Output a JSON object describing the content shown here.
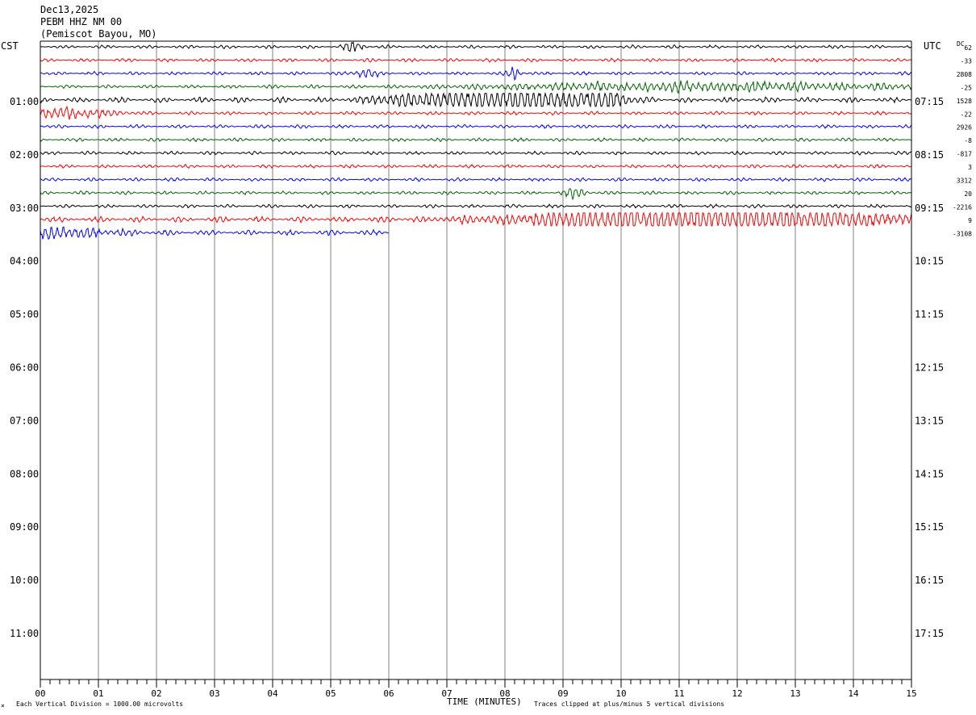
{
  "header": {
    "date": "Dec13,2025",
    "station": "PEBM HHZ NM 00",
    "location": "(Pemiscot Bayou, MO)"
  },
  "left_tz": "CST",
  "right_tz": "UTC",
  "dc_label": "DC",
  "footer": {
    "left_note": "Each Vertical Division = 1000.00 microvolts",
    "corner_mark": "×",
    "axis_title": "TIME (MINUTES)",
    "right_note": "Traces clipped at plus/minus 5 vertical divisions"
  },
  "chart_data": {
    "type": "line",
    "x_unit": "minutes",
    "xlim": [
      0,
      15
    ],
    "x_ticks": [
      "00",
      "01",
      "02",
      "03",
      "04",
      "05",
      "06",
      "07",
      "08",
      "09",
      "10",
      "11",
      "12",
      "13",
      "14",
      "15"
    ],
    "left_hour_labels": [
      "01:00",
      "02:00",
      "03:00",
      "04:00",
      "05:00",
      "06:00",
      "07:00",
      "08:00",
      "09:00",
      "10:00",
      "11:00"
    ],
    "right_hour_labels": [
      "07:15",
      "08:15",
      "09:15",
      "10:15",
      "11:15",
      "12:15",
      "13:15",
      "14:15",
      "15:15",
      "16:15",
      "17:15"
    ],
    "row_minutes": 15,
    "color_cycle": [
      "#000000",
      "#ff0000",
      "#0000ff",
      "#006400"
    ],
    "traces": [
      {
        "row": 0,
        "dc": "62",
        "end_minute": 15,
        "amp": 1.0,
        "bursts": [
          [
            5.4,
            0.15,
            2.0
          ]
        ]
      },
      {
        "row": 1,
        "dc": "-33",
        "end_minute": 15,
        "amp": 1.0,
        "bursts": []
      },
      {
        "row": 2,
        "dc": "2808",
        "end_minute": 15,
        "amp": 1.0,
        "bursts": [
          [
            5.6,
            0.2,
            1.5
          ],
          [
            8.15,
            0.1,
            2.5
          ]
        ]
      },
      {
        "row": 3,
        "dc": "-25",
        "end_minute": 15,
        "amp": 1.0,
        "bursts": [
          [
            11.5,
            3.5,
            1.5
          ]
        ]
      },
      {
        "row": 4,
        "dc": "1528",
        "end_minute": 15,
        "amp": 1.6,
        "bursts": [
          [
            8.2,
            1.0,
            5.0
          ],
          [
            9.7,
            0.4,
            3.0
          ],
          [
            6.5,
            0.8,
            2.0
          ]
        ]
      },
      {
        "row": 5,
        "dc": "-22",
        "end_minute": 15,
        "amp": 1.0,
        "bursts": [
          [
            0.5,
            0.8,
            1.5
          ]
        ]
      },
      {
        "row": 6,
        "dc": "2926",
        "end_minute": 15,
        "amp": 1.0,
        "bursts": []
      },
      {
        "row": 7,
        "dc": "-8",
        "end_minute": 15,
        "amp": 1.0,
        "bursts": []
      },
      {
        "row": 8,
        "dc": "-817",
        "end_minute": 15,
        "amp": 1.0,
        "bursts": []
      },
      {
        "row": 9,
        "dc": "3",
        "end_minute": 15,
        "amp": 1.0,
        "bursts": []
      },
      {
        "row": 10,
        "dc": "3312",
        "end_minute": 15,
        "amp": 1.0,
        "bursts": []
      },
      {
        "row": 11,
        "dc": "20",
        "end_minute": 15,
        "amp": 1.0,
        "bursts": [
          [
            9.2,
            0.2,
            1.5
          ]
        ]
      },
      {
        "row": 12,
        "dc": "-2216",
        "end_minute": 15,
        "amp": 1.0,
        "bursts": []
      },
      {
        "row": 13,
        "dc": "9",
        "end_minute": 15,
        "amp": 1.6,
        "bursts": [
          [
            10.8,
            2.5,
            4.5
          ],
          [
            13.5,
            1.5,
            2.0
          ]
        ]
      },
      {
        "row": 14,
        "dc": "-3108",
        "end_minute": 6,
        "amp": 1.6,
        "bursts": [
          [
            0.3,
            1.0,
            1.5
          ]
        ]
      }
    ]
  }
}
